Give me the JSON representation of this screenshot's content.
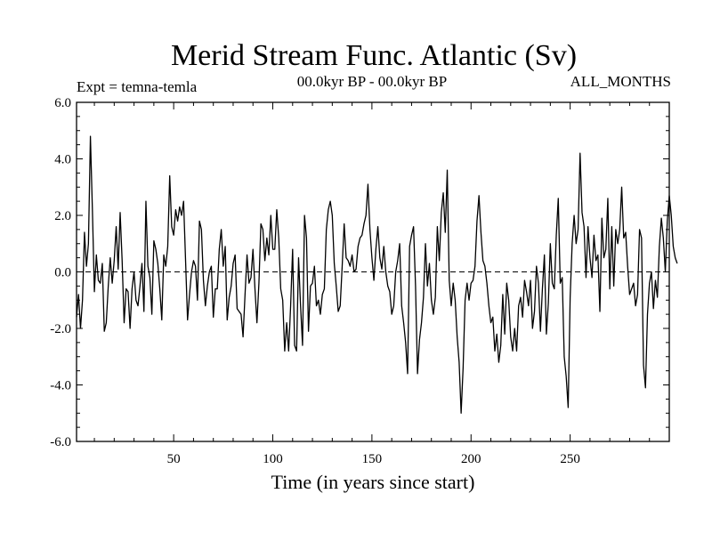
{
  "chart_data": {
    "type": "line",
    "title": "Merid Stream Func. Atlantic (Sv)",
    "subtitle_left": "Expt = temna-temla",
    "subtitle_center": "00.0kyr BP - 00.0kyr BP",
    "subtitle_right": "ALL_MONTHS",
    "xlabel": "Time (in years since start)",
    "ylabel": "",
    "xlim": [
      1,
      300
    ],
    "ylim": [
      -6,
      6
    ],
    "xticks": [
      50,
      100,
      150,
      200,
      250
    ],
    "xtick_labels": [
      "50",
      "100",
      "150",
      "200",
      "250"
    ],
    "yticks": [
      -6,
      -4,
      -2,
      0,
      2,
      4,
      6
    ],
    "ytick_labels": [
      "-6.0",
      "-4.0",
      "-2.0",
      "0.0",
      "2.0",
      "4.0",
      "6.0"
    ],
    "reference_line": {
      "y": 0,
      "style": "dashed"
    },
    "series": [
      {
        "name": "Merid Stream Func. Atlantic",
        "x_start": 1,
        "x_step": 1,
        "values": [
          -1.6,
          -0.8,
          -2.0,
          -1.0,
          1.4,
          0.2,
          1.0,
          4.8,
          2.2,
          -0.7,
          0.6,
          -0.3,
          -0.4,
          0.3,
          -2.1,
          -1.8,
          -0.5,
          0.5,
          -0.4,
          0.4,
          1.6,
          0.1,
          2.1,
          0.4,
          -1.8,
          -0.6,
          -0.7,
          -2.0,
          -0.6,
          0.0,
          -1.0,
          -1.2,
          -0.5,
          0.3,
          -1.4,
          2.5,
          0.2,
          -0.2,
          -1.5,
          1.1,
          0.8,
          0.3,
          -0.6,
          -1.7,
          0.6,
          0.2,
          0.9,
          3.4,
          1.6,
          1.3,
          2.2,
          1.8,
          2.3,
          2.0,
          2.5,
          0.4,
          -1.7,
          -0.8,
          0.0,
          0.4,
          0.2,
          -1.0,
          1.8,
          1.5,
          -0.3,
          -1.2,
          -0.5,
          0.0,
          0.2,
          -1.6,
          -0.6,
          -0.6,
          0.8,
          1.5,
          0.2,
          0.9,
          -1.7,
          -0.9,
          -0.5,
          0.3,
          0.6,
          -1.3,
          -1.4,
          -1.5,
          -2.3,
          -0.8,
          0.6,
          -0.4,
          -0.2,
          0.8,
          -0.6,
          -1.8,
          -0.4,
          1.7,
          1.5,
          0.4,
          1.2,
          0.6,
          2.0,
          0.8,
          0.8,
          2.2,
          1.2,
          -0.6,
          -1.0,
          -2.8,
          -1.8,
          -2.8,
          -1.2,
          0.8,
          -2.6,
          -2.8,
          0.5,
          -1.2,
          -2.6,
          2.0,
          1.2,
          -2.1,
          -0.5,
          -0.4,
          0.2,
          -1.2,
          -1.0,
          -1.5,
          -0.8,
          -0.6,
          1.5,
          2.2,
          2.5,
          2.0,
          0.3,
          -0.5,
          -1.4,
          -1.2,
          0.2,
          1.7,
          0.5,
          0.4,
          0.2,
          0.6,
          0.0,
          0.1,
          0.9,
          1.2,
          1.3,
          1.7,
          2.0,
          3.1,
          1.5,
          0.5,
          -0.3,
          0.8,
          1.6,
          0.5,
          0.1,
          0.9,
          0.0,
          -0.5,
          -0.7,
          -1.5,
          -1.2,
          0.0,
          0.4,
          1.0,
          -1.2,
          -1.8,
          -2.5,
          -3.6,
          0.9,
          1.3,
          1.6,
          -0.5,
          -3.6,
          -2.4,
          -1.8,
          -0.9,
          1.0,
          -0.5,
          0.3,
          -1.0,
          -1.5,
          -0.9,
          1.6,
          0.4,
          2.1,
          2.8,
          1.4,
          3.6,
          -0.3,
          -1.2,
          -0.4,
          -1.0,
          -2.3,
          -3.2,
          -5.0,
          -3.4,
          -1.0,
          -0.4,
          -1.0,
          -0.4,
          -0.3,
          0.2,
          1.8,
          2.7,
          1.4,
          0.4,
          0.2,
          -0.4,
          -1.2,
          -1.8,
          -1.6,
          -2.8,
          -2.2,
          -3.2,
          -2.6,
          -0.8,
          -2.2,
          -0.4,
          -1.0,
          -2.3,
          -2.8,
          -2.0,
          -2.8,
          -1.2,
          -0.9,
          -1.6,
          -0.3,
          -0.7,
          -1.2,
          -0.3,
          -2.0,
          -1.4,
          0.2,
          -0.4,
          -2.1,
          -0.6,
          0.6,
          -2.2,
          -1.1,
          1.0,
          -0.4,
          -0.6,
          1.3,
          2.6,
          -0.4,
          -0.2,
          -3.0,
          -3.7,
          -4.8,
          -0.9,
          1.0,
          2.0,
          1.0,
          1.5,
          4.2,
          2.1,
          1.6,
          -0.2,
          1.6,
          0.5,
          -0.2,
          1.3,
          0.4,
          0.6,
          -1.4,
          1.9,
          0.5,
          0.8,
          2.6,
          -0.6,
          1.6,
          -0.5,
          1.5,
          1.0,
          1.5,
          3.0,
          1.2,
          1.4,
          0.2,
          -0.8,
          -0.6,
          -0.4,
          -1.2,
          -0.8,
          1.5,
          1.2,
          -3.3,
          -4.1,
          -1.5,
          -0.4,
          0.0,
          -1.3,
          -0.3,
          -0.9,
          0.9,
          1.9,
          1.2,
          0.0,
          1.8,
          2.7,
          2.0,
          0.9,
          0.5,
          0.3
        ]
      }
    ]
  }
}
